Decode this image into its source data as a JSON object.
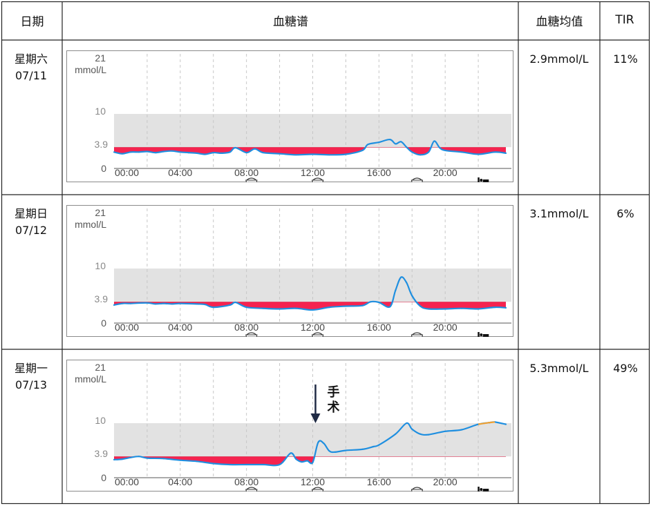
{
  "headers": {
    "date": "日期",
    "profile": "血糖谱",
    "avg": "血糖均值",
    "tir": "TIR"
  },
  "yaxis": {
    "top_value": "21",
    "unit": "mmol/L",
    "target_high": "10",
    "target_low": "3.9",
    "zero": "0",
    "max": 21
  },
  "xaxis": {
    "ticks": [
      "00:00",
      "04:00",
      "08:00",
      "12:00",
      "16:00",
      "20:00"
    ]
  },
  "meal_hours": [
    8.3,
    12.3,
    18.3
  ],
  "sleep_hour": 22.3,
  "colors": {
    "line": "#1f8fe0",
    "low_fill": "#f5234f",
    "low_stroke": "#cc1d3e",
    "range": "#e2e2e2",
    "grid": "#c6c6c6",
    "highlight": "#f0a030"
  },
  "rows": [
    {
      "day": "星期六",
      "date": "07/11",
      "avg": "2.9mmol/L",
      "tir": "11%"
    },
    {
      "day": "星期日",
      "date": "07/12",
      "avg": "3.1mmol/L",
      "tir": "6%"
    },
    {
      "day": "星期一",
      "date": "07/13",
      "avg": "5.3mmol/L",
      "tir": "49%",
      "annotation": "手术",
      "annotation_hour": 12.2
    }
  ],
  "chart_data": [
    {
      "type": "line",
      "title": "星期六 07/11",
      "ylabel": "mmol/L",
      "ylim": [
        0,
        21
      ],
      "xlim": [
        "00:00",
        "24:00"
      ],
      "target_range": [
        3.9,
        10
      ],
      "grid": true,
      "x": [
        "00:00",
        "00:30",
        "01:00",
        "01:30",
        "02:00",
        "02:30",
        "03:00",
        "03:30",
        "04:00",
        "04:30",
        "05:00",
        "05:30",
        "06:00",
        "06:30",
        "07:00",
        "07:20",
        "08:00",
        "08:30",
        "09:00",
        "10:00",
        "11:00",
        "12:00",
        "13:00",
        "14:00",
        "15:00",
        "15:20",
        "16:00",
        "16:40",
        "17:00",
        "17:20",
        "17:40",
        "18:00",
        "18:30",
        "19:00",
        "19:20",
        "19:40",
        "20:00",
        "21:00",
        "22:00",
        "23:00",
        "23:40"
      ],
      "values": [
        3.0,
        2.7,
        3.0,
        3.0,
        3.1,
        2.9,
        3.1,
        3.2,
        3.0,
        2.9,
        2.8,
        2.6,
        2.9,
        2.8,
        3.0,
        3.8,
        2.9,
        3.6,
        2.9,
        2.7,
        2.5,
        2.6,
        2.5,
        2.6,
        3.3,
        4.4,
        4.8,
        5.3,
        4.5,
        4.9,
        3.9,
        3.0,
        2.5,
        3.0,
        5.0,
        3.8,
        3.3,
        3.0,
        2.6,
        3.0,
        2.8
      ],
      "series_color": "#1f8fe0"
    },
    {
      "type": "line",
      "title": "星期日 07/12",
      "ylabel": "mmol/L",
      "ylim": [
        0,
        21
      ],
      "xlim": [
        "00:00",
        "24:00"
      ],
      "target_range": [
        3.9,
        10
      ],
      "grid": true,
      "x": [
        "00:00",
        "00:30",
        "01:00",
        "02:00",
        "02:30",
        "03:00",
        "03:30",
        "04:00",
        "05:00",
        "05:30",
        "06:00",
        "07:00",
        "07:20",
        "08:00",
        "09:00",
        "10:00",
        "11:00",
        "12:00",
        "13:00",
        "14:00",
        "15:00",
        "15:30",
        "16:00",
        "16:40",
        "17:00",
        "17:20",
        "17:40",
        "18:00",
        "18:30",
        "19:00",
        "20:00",
        "21:00",
        "22:00",
        "23:00",
        "23:40"
      ],
      "values": [
        3.3,
        3.6,
        3.6,
        3.7,
        3.5,
        3.6,
        3.5,
        3.6,
        3.5,
        3.4,
        2.9,
        3.3,
        3.8,
        2.9,
        2.7,
        2.6,
        2.7,
        2.4,
        2.9,
        3.1,
        3.2,
        3.9,
        3.8,
        3.0,
        6.0,
        8.4,
        7.4,
        5.0,
        3.1,
        2.6,
        2.6,
        2.7,
        2.6,
        2.9,
        2.8
      ],
      "series_color": "#1f8fe0"
    },
    {
      "type": "line",
      "title": "星期一 07/13",
      "ylabel": "mmol/L",
      "ylim": [
        0,
        21
      ],
      "xlim": [
        "00:00",
        "24:00"
      ],
      "target_range": [
        3.9,
        10
      ],
      "grid": true,
      "annotation": {
        "text": "手术",
        "x": "12:10"
      },
      "x": [
        "00:00",
        "00:30",
        "01:00",
        "01:30",
        "02:00",
        "03:00",
        "04:00",
        "05:00",
        "06:00",
        "07:00",
        "08:00",
        "09:00",
        "10:00",
        "10:40",
        "11:00",
        "11:20",
        "11:40",
        "12:00",
        "12:20",
        "12:40",
        "13:00",
        "13:20",
        "14:00",
        "15:00",
        "15:40",
        "16:00",
        "17:00",
        "17:40",
        "18:00",
        "18:30",
        "19:00",
        "20:00",
        "21:00",
        "22:00",
        "22:40",
        "23:00",
        "23:40"
      ],
      "values": [
        3.3,
        3.4,
        3.7,
        3.9,
        3.6,
        3.5,
        3.2,
        3.0,
        2.6,
        2.4,
        2.4,
        2.4,
        2.4,
        4.5,
        3.4,
        2.9,
        3.1,
        2.8,
        6.5,
        6.3,
        4.9,
        4.7,
        5.0,
        5.2,
        5.7,
        6.0,
        8.0,
        10.0,
        8.9,
        8.0,
        7.9,
        8.5,
        8.8,
        9.8,
        10.1,
        10.2,
        9.8
      ],
      "series_color": "#1f8fe0"
    }
  ]
}
